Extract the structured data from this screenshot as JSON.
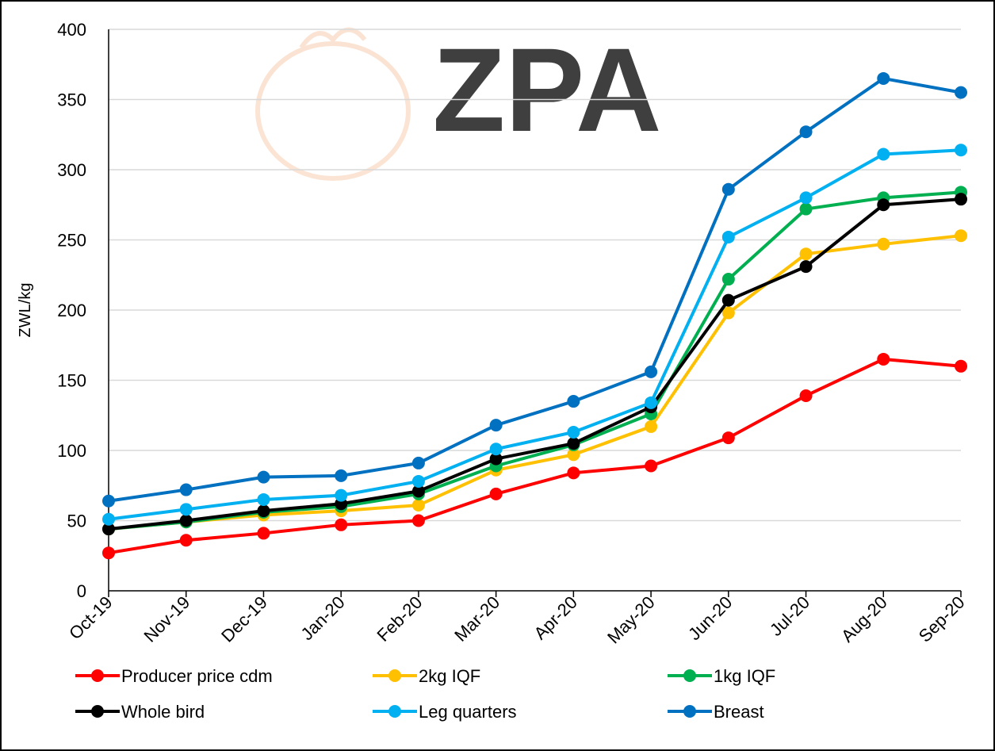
{
  "chart_data": {
    "type": "line",
    "watermark": "ZPA",
    "y_label": "ZWL/kg",
    "categories": [
      "Oct-19",
      "Nov-19",
      "Dec-19",
      "Jan-20",
      "Feb-20",
      "Mar-20",
      "Apr-20",
      "May-20",
      "Jun-20",
      "Jul-20",
      "Aug-20",
      "Sep-20"
    ],
    "series": [
      {
        "name": "Producer price cdm",
        "color": "#ff0000",
        "values": [
          27,
          36,
          41,
          47,
          50,
          69,
          84,
          89,
          109,
          139,
          165,
          160
        ]
      },
      {
        "name": "2kg IQF",
        "color": "#ffc000",
        "values": [
          44,
          49,
          54,
          57,
          61,
          86,
          97,
          117,
          198,
          240,
          247,
          253
        ]
      },
      {
        "name": "1kg IQF",
        "color": "#00b050",
        "values": [
          44,
          49,
          56,
          60,
          69,
          89,
          104,
          126,
          222,
          272,
          280,
          284
        ]
      },
      {
        "name": "Whole bird",
        "color": "#000000",
        "values": [
          44,
          50,
          57,
          62,
          71,
          94,
          105,
          131,
          207,
          231,
          275,
          279
        ]
      },
      {
        "name": "Leg quarters",
        "color": "#00b0f0",
        "values": [
          51,
          58,
          65,
          68,
          78,
          101,
          113,
          134,
          252,
          280,
          311,
          314
        ]
      },
      {
        "name": "Breast",
        "color": "#0070c0",
        "values": [
          64,
          72,
          81,
          82,
          91,
          118,
          135,
          156,
          286,
          327,
          365,
          355
        ]
      }
    ],
    "ylim": [
      0,
      400
    ],
    "yticks": [
      0,
      50,
      100,
      150,
      200,
      250,
      300,
      350,
      400
    ],
    "grid": true,
    "legend": "bottom"
  }
}
